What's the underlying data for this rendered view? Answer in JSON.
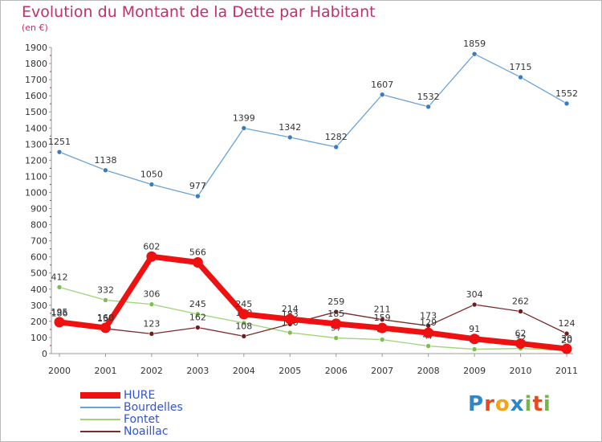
{
  "title": "Evolution du Montant de la Dette par Habitant",
  "unit": "(en €)",
  "logo": {
    "letters": [
      "P",
      "r",
      "o",
      "x",
      "i",
      "t",
      "i"
    ],
    "colors": [
      "#2e87c8",
      "#e8491d",
      "#f2a51a",
      "#2e87c8",
      "#73b846",
      "#e8491d",
      "#73b846"
    ]
  },
  "chart_data": {
    "type": "line",
    "x": [
      "2000",
      "2001",
      "2002",
      "2003",
      "2004",
      "2005",
      "2006",
      "2007",
      "2008",
      "2009",
      "2010",
      "2011"
    ],
    "ylim": [
      0,
      1900
    ],
    "yticks": [
      0,
      100,
      200,
      300,
      400,
      500,
      600,
      700,
      800,
      900,
      1000,
      1100,
      1200,
      1300,
      1400,
      1500,
      1600,
      1700,
      1800,
      1900
    ],
    "grid": false,
    "legend_position": "bottom-left",
    "series": [
      {
        "name": "Bourdelles",
        "color": "#6aa3d6",
        "marker": "#3a7cc0",
        "values": [
          1251,
          1138,
          1050,
          977,
          1399,
          1342,
          1282,
          1607,
          1532,
          1859,
          1715,
          1552
        ],
        "labels": [
          "1251",
          "1138",
          "1050",
          "977",
          "1399",
          "1342",
          "1282",
          "1607",
          "1532",
          "1859",
          "1715",
          "1552"
        ]
      },
      {
        "name": "Fontet",
        "color": "#9fd47a",
        "marker": "#7cc04a",
        "values": [
          412,
          332,
          306,
          245,
          190,
          130,
          97,
          87,
          47,
          27,
          32,
          20
        ],
        "labels": [
          "412",
          "332",
          "306",
          "245",
          "190",
          "130",
          "97",
          "87",
          "47",
          "27",
          "32",
          "20"
        ]
      },
      {
        "name": "Noaillac",
        "color": "#7a2b2b",
        "marker": "#6a1f1f",
        "values": [
          186,
          155,
          123,
          162,
          108,
          183,
          259,
          211,
          173,
          304,
          262,
          124
        ],
        "labels": [
          "186",
          "155",
          "123",
          "162",
          "108",
          "183",
          "259",
          "211",
          "173",
          "304",
          "262",
          "124"
        ]
      },
      {
        "name": "HURE",
        "color": "#ee1111",
        "marker": "#ee1111",
        "values": [
          195,
          160,
          602,
          566,
          245,
          214,
          185,
          159,
          129,
          91,
          62,
          30
        ],
        "labels": [
          "195",
          "160",
          "602",
          "566",
          "245",
          "214",
          "185",
          "159",
          "129",
          "91",
          "62",
          "30"
        ]
      }
    ]
  },
  "legend_order": [
    "HURE",
    "Bourdelles",
    "Fontet",
    "Noaillac"
  ]
}
